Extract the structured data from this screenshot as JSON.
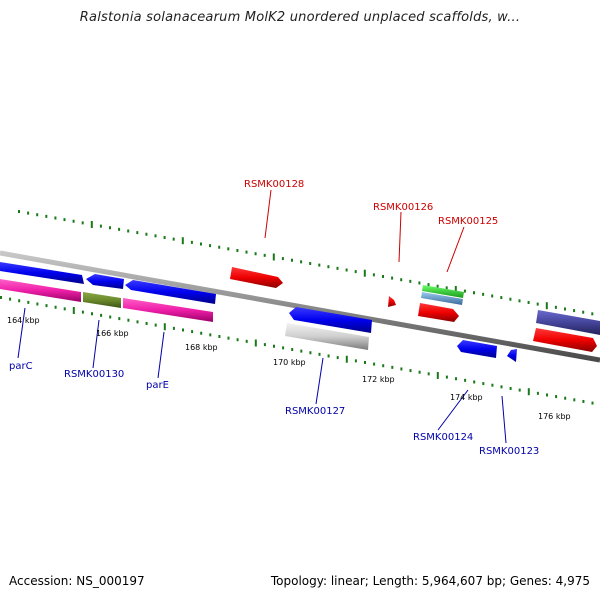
{
  "title": "Ralstonia solanacearum MolK2 unordered unplaced scaffolds, w...",
  "footer": {
    "accession": "Accession: NS_000197",
    "topology": "Topology: linear; Length: 5,964,607 bp; Genes: 4,975"
  },
  "colors": {
    "forward_label": "#cc0000",
    "reverse_label": "#0000aa",
    "dot": "#1a7a1a",
    "backbone": "#8a8a8a"
  },
  "scale_labels": [
    "164 kbp",
    "166 kbp",
    "168 kbp",
    "170 kbp",
    "172 kbp",
    "174 kbp",
    "176 kbp"
  ],
  "gene_labels": [
    {
      "text": "RSMK00128",
      "strand": "forward"
    },
    {
      "text": "RSMK00126",
      "strand": "forward"
    },
    {
      "text": "RSMK00125",
      "strand": "forward"
    },
    {
      "text": "parC",
      "strand": "reverse"
    },
    {
      "text": "RSMK00130",
      "strand": "reverse"
    },
    {
      "text": "parE",
      "strand": "reverse"
    },
    {
      "text": "RSMK00127",
      "strand": "reverse"
    },
    {
      "text": "RSMK00124",
      "strand": "reverse"
    },
    {
      "text": "RSMK00123",
      "strand": "reverse"
    }
  ]
}
